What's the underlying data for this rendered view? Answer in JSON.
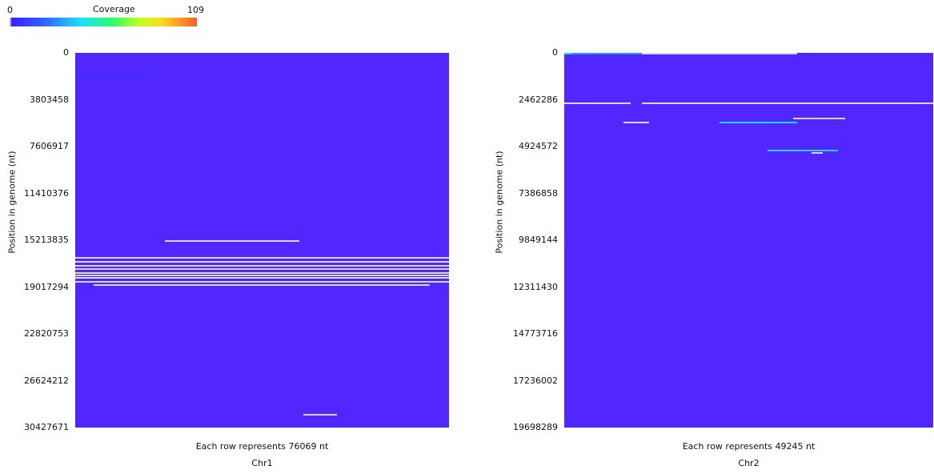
{
  "legend": {
    "title": "Coverage",
    "min": "0",
    "max": "109",
    "colors": [
      "#3b1cff",
      "#2f6cff",
      "#19e0ff",
      "#2bff6a",
      "#c8ff1f",
      "#ffd81a",
      "#ff5a2a"
    ]
  },
  "chart_data": [
    {
      "type": "heatmap",
      "title": "Chr1",
      "ylabel": "Position in genome (nt)",
      "xlabel": "Each row represents 76069 nt",
      "yticks": [
        "0",
        "3803458",
        "7606917",
        "11410376",
        "15213835",
        "19017294",
        "22820753",
        "26624212",
        "30427671"
      ],
      "ylim": [
        0,
        30427671
      ],
      "background_color": "#5226ff",
      "highlight_color": "#d6d6d6",
      "rows": [
        {
          "y": 1930000,
          "x0": 0.0,
          "x1": 0.2,
          "v": 5
        },
        {
          "y": 15200000,
          "x0": 0.24,
          "x1": 0.6,
          "v": 80
        },
        {
          "y": 16600000,
          "x0": 0.0,
          "x1": 1.0,
          "v": 60
        },
        {
          "y": 16900000,
          "x0": 0.0,
          "x1": 1.0,
          "v": 70
        },
        {
          "y": 17200000,
          "x0": 0.0,
          "x1": 1.0,
          "v": 90
        },
        {
          "y": 17500000,
          "x0": 0.0,
          "x1": 1.0,
          "v": 80
        },
        {
          "y": 17800000,
          "x0": 0.0,
          "x1": 1.0,
          "v": 100
        },
        {
          "y": 18000000,
          "x0": 0.0,
          "x1": 1.0,
          "v": 90
        },
        {
          "y": 18200000,
          "x0": 0.0,
          "x1": 1.0,
          "v": 100
        },
        {
          "y": 18500000,
          "x0": 0.0,
          "x1": 1.0,
          "v": 80
        },
        {
          "y": 18800000,
          "x0": 0.05,
          "x1": 0.95,
          "v": 60
        },
        {
          "y": 29300000,
          "x0": 0.61,
          "x1": 0.7,
          "v": 80
        }
      ]
    },
    {
      "type": "heatmap",
      "title": "Chr2",
      "ylabel": "Position in genome (nt)",
      "xlabel": "Each row represents 49245 nt",
      "yticks": [
        "0",
        "2462286",
        "4924572",
        "7386858",
        "9849144",
        "12311430",
        "14773716",
        "17236002",
        "19698289"
      ],
      "ylim": [
        0,
        19698289
      ],
      "background_color": "#5226ff",
      "highlight_color": "#d6d6d6",
      "rows": [
        {
          "y": 20000,
          "x0": 0.0,
          "x1": 0.02,
          "v": 40
        },
        {
          "y": 20000,
          "x0": 0.02,
          "x1": 0.21,
          "v": 25
        },
        {
          "y": 20000,
          "x0": 0.21,
          "x1": 0.63,
          "v": 70
        },
        {
          "y": 2630000,
          "x0": 0.0,
          "x1": 0.18,
          "v": 60
        },
        {
          "y": 2630000,
          "x0": 0.21,
          "x1": 1.0,
          "v": 60
        },
        {
          "y": 3420000,
          "x0": 0.62,
          "x1": 0.76,
          "v": 60
        },
        {
          "y": 3610000,
          "x0": 0.16,
          "x1": 0.23,
          "v": 70
        },
        {
          "y": 3610000,
          "x0": 0.42,
          "x1": 0.63,
          "v": 35
        },
        {
          "y": 5100000,
          "x0": 0.55,
          "x1": 0.74,
          "v": 35
        },
        {
          "y": 5220000,
          "x0": 0.67,
          "x1": 0.7,
          "v": 80
        }
      ]
    }
  ]
}
